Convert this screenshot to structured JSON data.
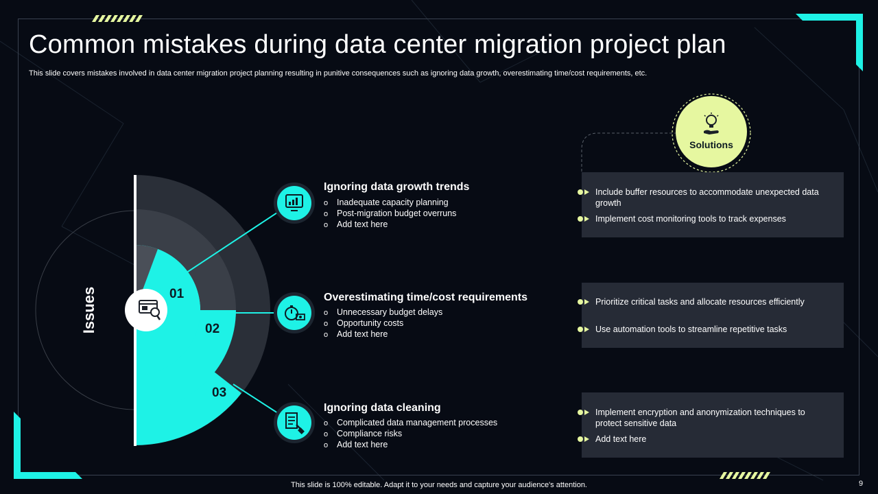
{
  "slide": {
    "title": "Common mistakes during data center migration project plan",
    "subtitle": "This slide covers mistakes involved in data center migration project planning resulting in punitive consequences such as ignoring data growth, overestimating time/cost requirements, etc.",
    "footer": "This slide is 100% editable. Adapt it to your needs and capture your audience's attention.",
    "page_number": "9"
  },
  "diagram": {
    "issues_label": "Issues",
    "solutions_label": "Solutions",
    "numbers": [
      "01",
      "02",
      "03"
    ]
  },
  "issues": [
    {
      "title": "Ignoring data growth trends",
      "icon": "chart-monitor-icon",
      "points": [
        "Inadequate  capacity planning",
        "Post-migration  budget overruns",
        "Add text here"
      ]
    },
    {
      "title": "Overestimating time/cost requirements",
      "icon": "stopwatch-money-icon",
      "points": [
        "Unnecessary budget delays",
        "Opportunity costs",
        "Add text here"
      ]
    },
    {
      "title": "Ignoring data cleaning",
      "icon": "document-cleaning-icon",
      "points": [
        "Complicated data management processes",
        "Compliance risks",
        "Add text here"
      ]
    }
  ],
  "solutions": [
    [
      "Include buffer resources to accommodate unexpected data growth",
      "Implement  cost monitoring tools to track expenses"
    ],
    [
      "Prioritize critical tasks and allocate resources efficiently",
      "Use automation tools to streamline repetitive tasks"
    ],
    [
      "Implement encryption and anonymization techniques to protect sensitive data",
      "Add text here"
    ]
  ],
  "colors": {
    "background": "#070b14",
    "accent_cyan": "#1ef2e6",
    "accent_lime": "#e6f7a0",
    "panel": "#262b36",
    "ring_dark": "#2a2f38",
    "ring_mid": "#3a3f48",
    "ring_light": "#4a4f58"
  }
}
